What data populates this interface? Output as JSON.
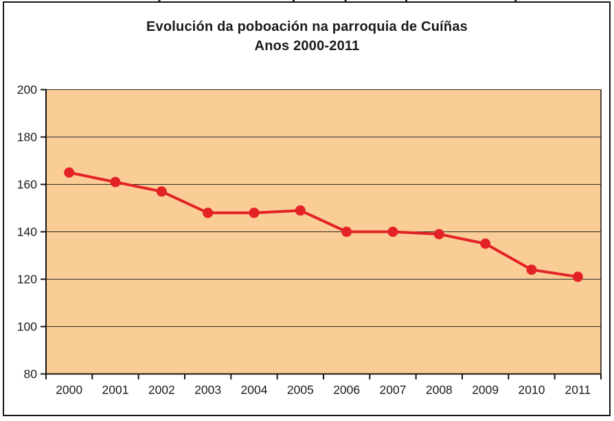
{
  "page": {
    "background": "#ffffff",
    "frame_border_color": "#141414"
  },
  "cropped_top_text": {
    "note": "descender fragments of a cut-off text line above the chart",
    "fragment_x_positions": [
      230,
      426,
      502,
      590,
      749
    ]
  },
  "chart_data": {
    "type": "line",
    "title": "Evolución da poboación na parroquia de Cuíñas",
    "subtitle": "Anos 2000-2011",
    "categories": [
      "2000",
      "2001",
      "2002",
      "2003",
      "2004",
      "2005",
      "2006",
      "2007",
      "2008",
      "2009",
      "2010",
      "2011"
    ],
    "values": [
      165,
      161,
      157,
      148,
      148,
      149,
      140,
      140,
      139,
      135,
      124,
      121
    ],
    "xlabel": "",
    "ylabel": "",
    "ylim": [
      80,
      200
    ],
    "yticks": [
      80,
      100,
      120,
      140,
      160,
      180,
      200
    ],
    "grid": "horizontal gridlines on",
    "legend": "none",
    "colors": {
      "plot_background": "#FACC96",
      "line": "#E32226",
      "marker": "#E32226",
      "gridline": "#2b2b2b",
      "axis": "#141414",
      "tick_label": "#1a1a1a"
    },
    "marker_shape": "circle"
  }
}
